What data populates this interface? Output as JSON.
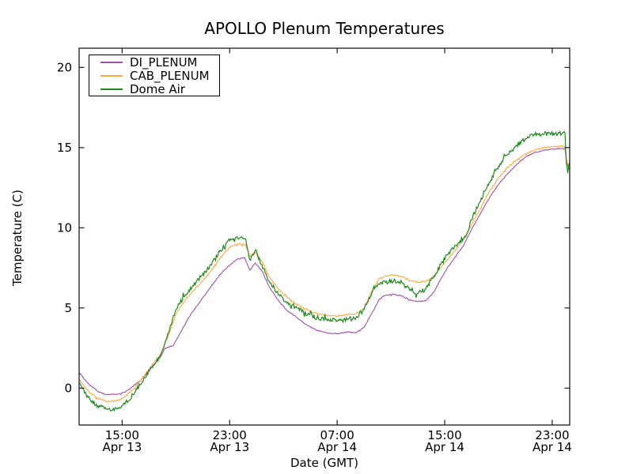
{
  "chart": {
    "title": "APOLLO Plenum Temperatures",
    "xlabel": "Date (GMT)",
    "ylabel": "Temperature (C)"
  },
  "chart_data": {
    "type": "line",
    "title": "APOLLO Plenum Temperatures",
    "xlabel": "Date (GMT)",
    "ylabel": "Temperature (C)",
    "x_unit": "hours since Apr 13 00:00 GMT",
    "xlim": [
      11.8,
      48.3
    ],
    "ylim": [
      -2.3,
      21.2
    ],
    "grid": false,
    "legend_position": "upper-left",
    "x_ticks": [
      {
        "value": 15,
        "time": "15:00",
        "date": "Apr 13"
      },
      {
        "value": 23,
        "time": "23:00",
        "date": "Apr 13"
      },
      {
        "value": 31,
        "time": "07:00",
        "date": "Apr 14"
      },
      {
        "value": 39,
        "time": "15:00",
        "date": "Apr 14"
      },
      {
        "value": 47,
        "time": "23:00",
        "date": "Apr 14"
      }
    ],
    "y_ticks": [
      0,
      5,
      10,
      15,
      20
    ],
    "series": [
      {
        "name": "DI_PLENUM",
        "color": "#a050a8",
        "noise": 0.03,
        "points": [
          [
            11.8,
            1.0
          ],
          [
            12.2,
            0.55
          ],
          [
            12.6,
            0.2
          ],
          [
            13.2,
            -0.2
          ],
          [
            13.8,
            -0.4
          ],
          [
            14.6,
            -0.4
          ],
          [
            15.2,
            -0.25
          ],
          [
            15.8,
            0.1
          ],
          [
            16.5,
            0.6
          ],
          [
            17.2,
            1.3
          ],
          [
            17.9,
            2.0
          ],
          [
            18.2,
            2.5
          ],
          [
            18.8,
            2.65
          ],
          [
            19.5,
            3.7
          ],
          [
            20.1,
            4.6
          ],
          [
            20.8,
            5.4
          ],
          [
            21.5,
            6.2
          ],
          [
            22.2,
            7.0
          ],
          [
            22.9,
            7.6
          ],
          [
            23.5,
            8.0
          ],
          [
            24.1,
            8.15
          ],
          [
            24.5,
            7.35
          ],
          [
            24.9,
            7.8
          ],
          [
            25.4,
            7.3
          ],
          [
            25.9,
            6.4
          ],
          [
            26.5,
            5.6
          ],
          [
            27.2,
            4.9
          ],
          [
            28.0,
            4.4
          ],
          [
            28.8,
            3.9
          ],
          [
            29.5,
            3.6
          ],
          [
            30.2,
            3.45
          ],
          [
            31.0,
            3.4
          ],
          [
            31.8,
            3.5
          ],
          [
            32.4,
            3.45
          ],
          [
            33.0,
            3.8
          ],
          [
            33.6,
            4.7
          ],
          [
            34.1,
            5.5
          ],
          [
            34.6,
            5.8
          ],
          [
            35.2,
            5.85
          ],
          [
            35.8,
            5.75
          ],
          [
            36.4,
            5.5
          ],
          [
            37.0,
            5.4
          ],
          [
            37.6,
            5.45
          ],
          [
            38.2,
            6.0
          ],
          [
            38.7,
            6.8
          ],
          [
            39.2,
            7.5
          ],
          [
            39.8,
            8.2
          ],
          [
            40.4,
            8.9
          ],
          [
            41.0,
            9.9
          ],
          [
            41.6,
            10.8
          ],
          [
            42.2,
            11.7
          ],
          [
            42.9,
            12.6
          ],
          [
            43.6,
            13.3
          ],
          [
            44.3,
            13.9
          ],
          [
            45.0,
            14.4
          ],
          [
            45.7,
            14.7
          ],
          [
            46.4,
            14.85
          ],
          [
            47.1,
            14.9
          ],
          [
            47.7,
            14.95
          ],
          [
            47.95,
            14.9
          ],
          [
            48.1,
            14.0
          ],
          [
            48.3,
            13.6
          ]
        ]
      },
      {
        "name": "CAB_PLENUM",
        "color": "#ffa93a",
        "noise": 0.045,
        "points": [
          [
            11.8,
            0.55
          ],
          [
            12.2,
            0.1
          ],
          [
            12.6,
            -0.3
          ],
          [
            13.2,
            -0.65
          ],
          [
            13.8,
            -0.8
          ],
          [
            14.6,
            -0.8
          ],
          [
            15.2,
            -0.55
          ],
          [
            15.8,
            -0.1
          ],
          [
            16.5,
            0.6
          ],
          [
            17.2,
            1.4
          ],
          [
            17.9,
            2.2
          ],
          [
            18.4,
            3.2
          ],
          [
            19.0,
            4.6
          ],
          [
            19.6,
            5.4
          ],
          [
            20.2,
            6.0
          ],
          [
            20.9,
            6.6
          ],
          [
            21.6,
            7.3
          ],
          [
            22.3,
            8.15
          ],
          [
            23.0,
            8.8
          ],
          [
            23.6,
            9.0
          ],
          [
            24.2,
            8.95
          ],
          [
            24.5,
            8.2
          ],
          [
            24.9,
            8.5
          ],
          [
            25.4,
            7.9
          ],
          [
            25.9,
            7.0
          ],
          [
            26.5,
            6.3
          ],
          [
            27.2,
            5.7
          ],
          [
            28.0,
            5.2
          ],
          [
            28.8,
            4.85
          ],
          [
            29.5,
            4.65
          ],
          [
            30.2,
            4.55
          ],
          [
            31.0,
            4.5
          ],
          [
            31.8,
            4.6
          ],
          [
            32.4,
            4.65
          ],
          [
            33.0,
            5.0
          ],
          [
            33.6,
            6.1
          ],
          [
            34.1,
            6.8
          ],
          [
            34.6,
            7.0
          ],
          [
            35.2,
            7.05
          ],
          [
            35.8,
            6.95
          ],
          [
            36.4,
            6.7
          ],
          [
            37.0,
            6.6
          ],
          [
            37.6,
            6.65
          ],
          [
            38.2,
            7.0
          ],
          [
            38.7,
            7.5
          ],
          [
            39.2,
            8.0
          ],
          [
            39.8,
            8.6
          ],
          [
            40.4,
            9.3
          ],
          [
            41.0,
            10.2
          ],
          [
            41.6,
            11.1
          ],
          [
            42.2,
            12.1
          ],
          [
            42.9,
            13.0
          ],
          [
            43.6,
            13.7
          ],
          [
            44.3,
            14.2
          ],
          [
            45.0,
            14.6
          ],
          [
            45.7,
            14.85
          ],
          [
            46.4,
            15.0
          ],
          [
            47.1,
            15.05
          ],
          [
            47.7,
            15.1
          ],
          [
            47.95,
            15.05
          ],
          [
            48.1,
            14.1
          ],
          [
            48.3,
            13.7
          ]
        ]
      },
      {
        "name": "Dome Air",
        "color": "#1e8b1e",
        "noise": 0.14,
        "points": [
          [
            11.8,
            0.3
          ],
          [
            12.2,
            -0.3
          ],
          [
            12.6,
            -0.7
          ],
          [
            13.2,
            -1.1
          ],
          [
            13.8,
            -1.3
          ],
          [
            14.6,
            -1.3
          ],
          [
            15.2,
            -1.0
          ],
          [
            15.8,
            -0.4
          ],
          [
            16.5,
            0.4
          ],
          [
            17.2,
            1.3
          ],
          [
            17.9,
            2.1
          ],
          [
            18.4,
            3.4
          ],
          [
            19.0,
            4.9
          ],
          [
            19.6,
            5.7
          ],
          [
            20.2,
            6.3
          ],
          [
            20.9,
            7.0
          ],
          [
            21.6,
            7.7
          ],
          [
            22.3,
            8.6
          ],
          [
            23.0,
            9.2
          ],
          [
            23.6,
            9.35
          ],
          [
            24.2,
            9.3
          ],
          [
            24.5,
            8.0
          ],
          [
            24.9,
            8.6
          ],
          [
            25.4,
            7.7
          ],
          [
            25.9,
            6.7
          ],
          [
            26.5,
            6.0
          ],
          [
            27.2,
            5.4
          ],
          [
            28.0,
            5.0
          ],
          [
            28.8,
            4.6
          ],
          [
            29.5,
            4.4
          ],
          [
            30.2,
            4.3
          ],
          [
            31.0,
            4.2
          ],
          [
            31.8,
            4.3
          ],
          [
            32.4,
            4.4
          ],
          [
            33.0,
            4.9
          ],
          [
            33.6,
            6.0
          ],
          [
            34.1,
            6.5
          ],
          [
            34.6,
            6.6
          ],
          [
            35.2,
            6.7
          ],
          [
            35.8,
            6.6
          ],
          [
            36.4,
            6.1
          ],
          [
            37.0,
            5.9
          ],
          [
            37.6,
            6.2
          ],
          [
            38.2,
            7.0
          ],
          [
            38.7,
            7.7
          ],
          [
            39.2,
            8.3
          ],
          [
            39.8,
            8.9
          ],
          [
            40.2,
            9.1
          ],
          [
            40.6,
            9.5
          ],
          [
            41.0,
            10.5
          ],
          [
            41.6,
            11.6
          ],
          [
            42.2,
            12.7
          ],
          [
            42.9,
            13.7
          ],
          [
            43.6,
            14.5
          ],
          [
            44.3,
            15.1
          ],
          [
            45.0,
            15.55
          ],
          [
            45.7,
            15.8
          ],
          [
            46.4,
            15.85
          ],
          [
            47.1,
            15.9
          ],
          [
            47.7,
            15.85
          ],
          [
            47.95,
            15.9
          ],
          [
            48.05,
            14.0
          ],
          [
            48.15,
            13.4
          ],
          [
            48.3,
            14.1
          ]
        ]
      }
    ]
  }
}
